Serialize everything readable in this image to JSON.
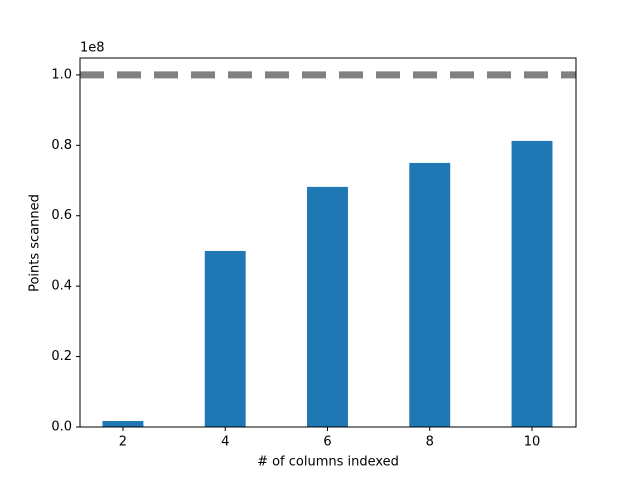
{
  "chart_data": {
    "type": "bar",
    "xlabel": "# of columns indexed",
    "ylabel": "Points scanned",
    "y_offset_label": "1e8",
    "x": [
      2,
      4,
      6,
      8,
      10
    ],
    "values": [
      1700000,
      50000000,
      68200000,
      75000000,
      81250000
    ],
    "color": "#1f77b4",
    "xlim": [
      1.16,
      10.86
    ],
    "xticks": [
      2,
      4,
      6,
      8,
      10
    ],
    "ylim": [
      0,
      104800000
    ],
    "yticks": [
      {
        "value": 0,
        "label": "0.0"
      },
      {
        "value": 20000000,
        "label": "0.2"
      },
      {
        "value": 40000000,
        "label": "0.4"
      },
      {
        "value": 60000000,
        "label": "0.6"
      },
      {
        "value": 80000000,
        "label": "0.8"
      },
      {
        "value": 100000000,
        "label": "1.0"
      }
    ],
    "hline": {
      "value": 100000000,
      "color": "#808080",
      "style": "dashed"
    }
  }
}
